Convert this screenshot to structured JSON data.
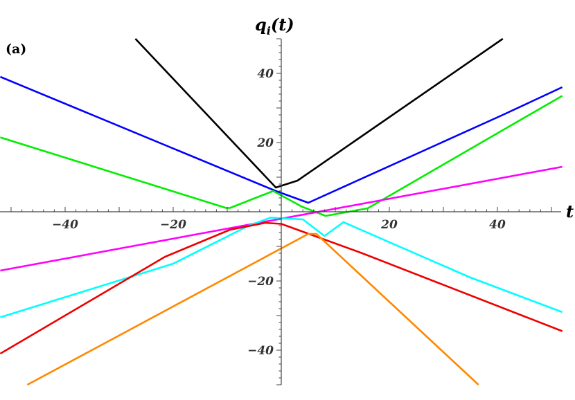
{
  "chart_data": {
    "type": "line",
    "panel_label": "(a)",
    "xlabel": "t",
    "ylabel_base": "q",
    "ylabel_sub": "i",
    "ylabel_arg": "(t)",
    "xlim": [
      -52,
      52
    ],
    "ylim": [
      -50,
      50
    ],
    "x_ticks": [
      -40,
      -20,
      20,
      40
    ],
    "y_ticks": [
      -40,
      -20,
      20,
      40
    ],
    "grid": false,
    "series": [
      {
        "color": "#000000",
        "points": [
          [
            -27,
            50
          ],
          [
            -1,
            7
          ],
          [
            3,
            9
          ],
          [
            41,
            50
          ]
        ]
      },
      {
        "color": "#0000ff",
        "points": [
          [
            -52,
            39
          ],
          [
            -1,
            6
          ],
          [
            5,
            2.6
          ],
          [
            41,
            28
          ],
          [
            52,
            36
          ]
        ]
      },
      {
        "color": "#00ee00",
        "points": [
          [
            -52,
            21.5
          ],
          [
            -10.2,
            1.1
          ],
          [
            -9.5,
            1.1
          ],
          [
            -1.5,
            6
          ],
          [
            3.8,
            1.5
          ],
          [
            8.2,
            -1.2
          ],
          [
            16,
            1
          ],
          [
            42,
            24.5
          ],
          [
            52,
            33.5
          ]
        ]
      },
      {
        "color": "#ff00ff",
        "points": [
          [
            -52,
            -17
          ],
          [
            52,
            13
          ]
        ]
      },
      {
        "color": "#00ffff",
        "points": [
          [
            -52,
            -30.5
          ],
          [
            -20,
            -15
          ],
          [
            -6,
            -4
          ],
          [
            -2,
            -1.7
          ],
          [
            4,
            -2.2
          ],
          [
            8,
            -7
          ],
          [
            11.5,
            -3
          ],
          [
            35,
            -19
          ],
          [
            52,
            -29
          ]
        ]
      },
      {
        "color": "#ee0000",
        "points": [
          [
            -52,
            -41
          ],
          [
            -21.5,
            -13
          ],
          [
            -9.5,
            -5.2
          ],
          [
            -3,
            -3.2
          ],
          [
            0,
            -3.5
          ],
          [
            15,
            -12
          ],
          [
            52,
            -34.5
          ]
        ]
      },
      {
        "color": "#ff8800",
        "points": [
          [
            -47,
            -50
          ],
          [
            5,
            -6.4
          ],
          [
            6.5,
            -6.4
          ],
          [
            36.5,
            -50
          ]
        ]
      }
    ]
  }
}
